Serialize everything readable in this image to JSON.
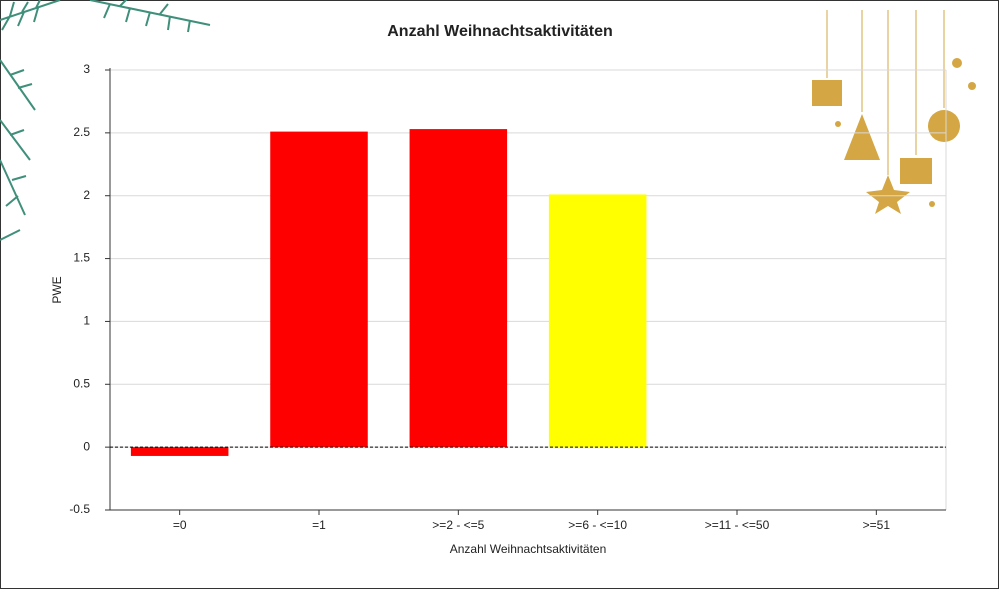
{
  "chart_data": {
    "type": "bar",
    "title": "Anzahl Weihnachtsaktivitäten",
    "x_label": "Anzahl Weihnachtsaktivitäten",
    "y_label": "PWE",
    "categories": [
      "=0",
      "=1",
      ">=2 - <=5",
      ">=6 - <=10",
      ">=11 - <=50",
      ">=51"
    ],
    "values": [
      -0.07,
      2.51,
      2.53,
      2.01,
      null,
      null
    ],
    "colors": [
      "#ff0000",
      "#ff0000",
      "#ff0000",
      "#ffff00",
      null,
      null
    ],
    "ylim": [
      -0.5,
      3
    ],
    "yticks": [
      -0.5,
      0,
      0.5,
      1,
      1.5,
      2,
      2.5,
      3
    ],
    "grid": true
  }
}
